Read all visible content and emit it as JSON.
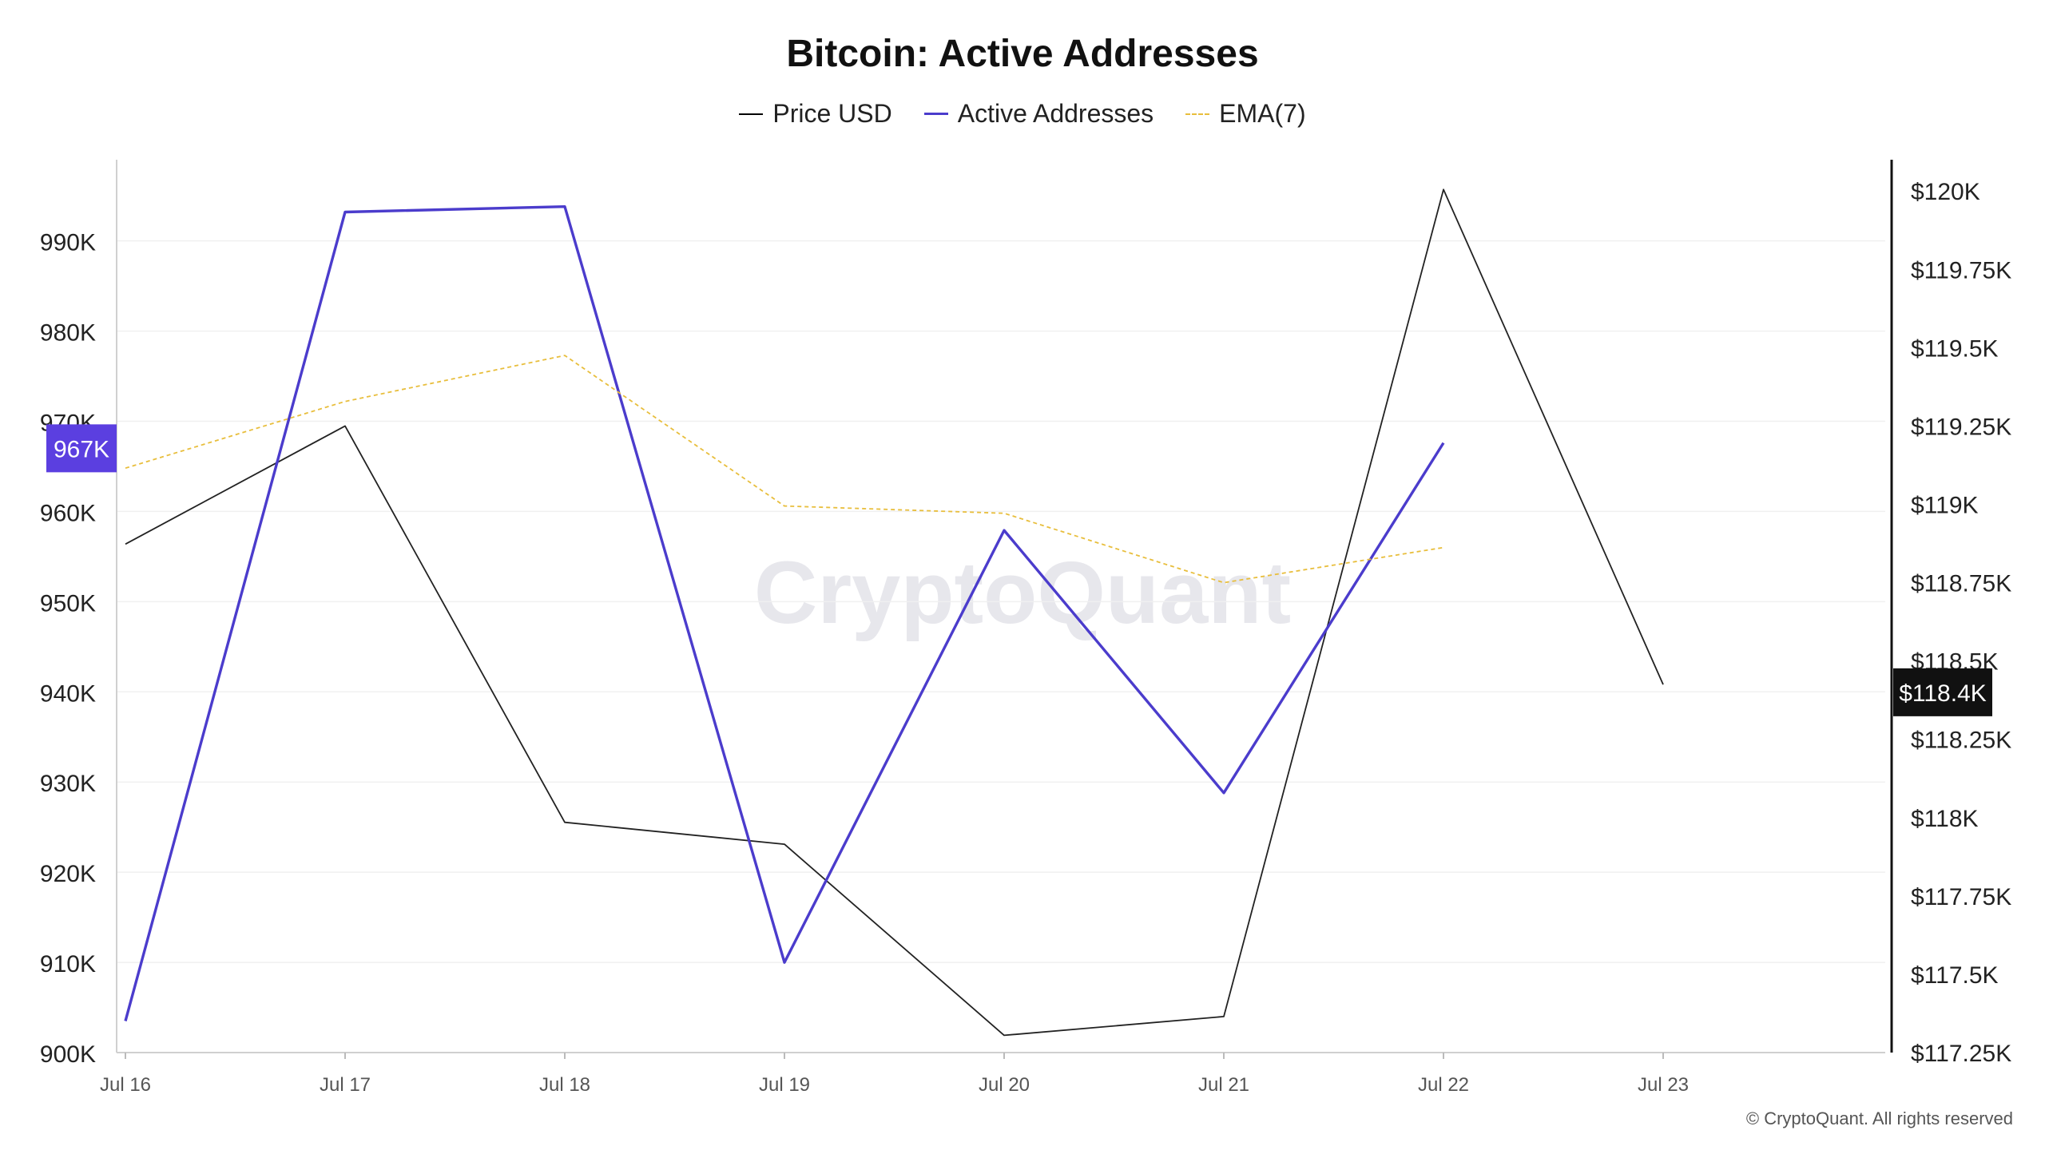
{
  "chart_data": {
    "type": "line",
    "title": "Bitcoin: Active Addresses",
    "categories": [
      "Jul 16",
      "Jul 17",
      "Jul 18",
      "Jul 19",
      "Jul 20",
      "Jul 21",
      "Jul 22",
      "Jul 23"
    ],
    "series": [
      {
        "name": "Price USD",
        "axis": "right",
        "color": "#222222",
        "values": [
          118873,
          119250,
          117985,
          117915,
          117305,
          117365,
          120005,
          118425
        ]
      },
      {
        "name": "Active Addresses",
        "axis": "left",
        "color": "#4b3ccc",
        "values": [
          903500,
          993200,
          993800,
          910000,
          957900,
          928800,
          967600,
          null
        ]
      },
      {
        "name": "EMA(7)",
        "axis": "left",
        "color": "#e8be3c",
        "dashed": true,
        "values": [
          964800,
          972200,
          977300,
          960600,
          959800,
          952100,
          956000,
          null
        ]
      }
    ],
    "left_axis": {
      "ylim": [
        900000,
        999000
      ],
      "ticks": [
        900000,
        910000,
        920000,
        930000,
        940000,
        950000,
        960000,
        970000,
        980000,
        990000
      ],
      "tick_labels": [
        "900K",
        "910K",
        "920K",
        "930K",
        "940K",
        "950K",
        "960K",
        "970K",
        "980K",
        "990K"
      ]
    },
    "right_axis": {
      "ylim": [
        117250,
        120100
      ],
      "ticks": [
        117250,
        117500,
        117750,
        118000,
        118250,
        118500,
        118750,
        119000,
        119250,
        119500,
        119750,
        120000
      ],
      "tick_labels": [
        "$117.25K",
        "$117.5K",
        "$117.75K",
        "$118K",
        "$118.25K",
        "$118.5K",
        "$118.75K",
        "$119K",
        "$119.25K",
        "$119.5K",
        "$119.75K",
        "$120K"
      ]
    },
    "current_value_left": {
      "value": 967000,
      "label": "967K",
      "color": "#5b3fe0"
    },
    "current_value_right": {
      "value": 118400,
      "label": "$118.4K",
      "color": "#111111"
    },
    "grid": true,
    "legend": "top-center",
    "watermark": "CryptoQuant"
  },
  "footer": "© CryptoQuant. All rights reserved"
}
